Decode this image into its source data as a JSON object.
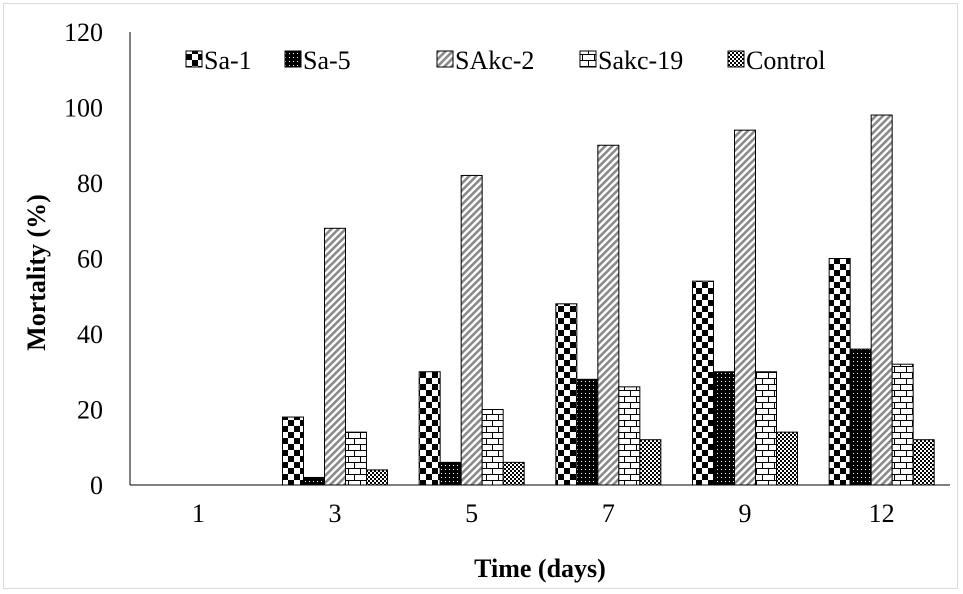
{
  "chart_data": {
    "type": "bar",
    "title": "",
    "xlabel": "Time (days)",
    "ylabel": "Mortality (%)",
    "ylim": [
      0,
      120
    ],
    "yticks": [
      0,
      20,
      40,
      60,
      80,
      100,
      120
    ],
    "categories": [
      "1",
      "3",
      "5",
      "7",
      "9",
      "12"
    ],
    "grid": false,
    "legend_position": "top",
    "series": [
      {
        "name": "Sa-1",
        "pattern": "checker",
        "values": [
          0,
          18,
          30,
          48,
          54,
          60
        ]
      },
      {
        "name": "Sa-5",
        "pattern": "dotted-black",
        "values": [
          0,
          2,
          6,
          28,
          30,
          36
        ]
      },
      {
        "name": "SAkc-2",
        "pattern": "diagonal-gray",
        "values": [
          0,
          68,
          82,
          90,
          94,
          98
        ]
      },
      {
        "name": "Sakc-19",
        "pattern": "brick",
        "values": [
          0,
          14,
          20,
          26,
          30,
          32
        ]
      },
      {
        "name": "Control",
        "pattern": "diamond-check",
        "values": [
          0,
          4,
          6,
          12,
          14,
          12
        ]
      }
    ]
  }
}
